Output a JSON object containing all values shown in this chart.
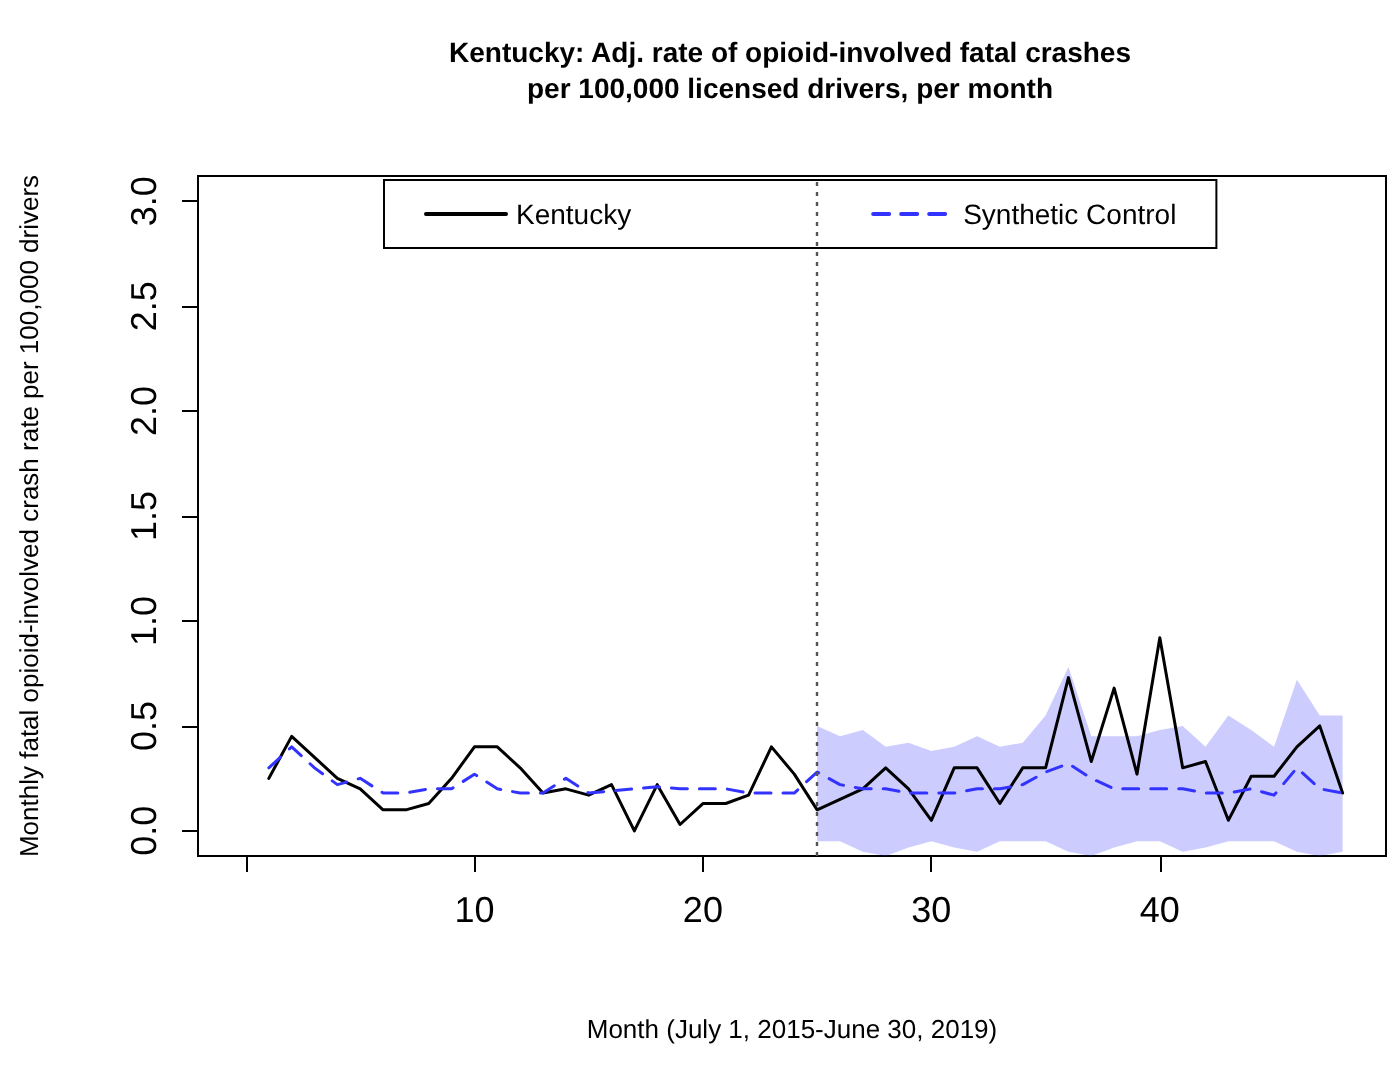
{
  "chart_data": {
    "type": "line",
    "title": "Kentucky: Adj. rate of opioid-involved fatal crashes\nper 100,000 licensed drivers, per month",
    "xlabel": "Month (July 1, 2015-June 30, 2019)",
    "ylabel": "Monthly fatal opioid-involved crash rate per 100,000 drivers",
    "x": [
      1,
      2,
      3,
      4,
      5,
      6,
      7,
      8,
      9,
      10,
      11,
      12,
      13,
      14,
      15,
      16,
      17,
      18,
      19,
      20,
      21,
      22,
      23,
      24,
      25,
      26,
      27,
      28,
      29,
      30,
      31,
      32,
      33,
      34,
      35,
      36,
      37,
      38,
      39,
      40,
      41,
      42,
      43,
      44,
      45,
      46,
      47,
      48
    ],
    "series": [
      {
        "name": "Kentucky",
        "color": "#000000",
        "line_style": "solid",
        "values": [
          0.25,
          0.45,
          0.35,
          0.25,
          0.2,
          0.1,
          0.1,
          0.13,
          0.25,
          0.4,
          0.4,
          0.3,
          0.18,
          0.2,
          0.17,
          0.22,
          0.0,
          0.22,
          0.03,
          0.13,
          0.13,
          0.17,
          0.4,
          0.27,
          0.1,
          0.15,
          0.2,
          0.3,
          0.2,
          0.05,
          0.3,
          0.3,
          0.13,
          0.3,
          0.3,
          0.73,
          0.33,
          0.68,
          0.27,
          0.92,
          0.3,
          0.33,
          0.05,
          0.26,
          0.26,
          0.4,
          0.5,
          0.18
        ]
      },
      {
        "name": "Synthetic Control",
        "color": "#3333ff",
        "line_style": "dashed",
        "values": [
          0.3,
          0.4,
          0.3,
          0.22,
          0.25,
          0.18,
          0.18,
          0.2,
          0.2,
          0.27,
          0.2,
          0.18,
          0.18,
          0.25,
          0.18,
          0.19,
          0.2,
          0.21,
          0.2,
          0.2,
          0.2,
          0.18,
          0.18,
          0.18,
          0.28,
          0.22,
          0.2,
          0.2,
          0.18,
          0.18,
          0.18,
          0.2,
          0.2,
          0.22,
          0.28,
          0.32,
          0.25,
          0.2,
          0.2,
          0.2,
          0.2,
          0.18,
          0.18,
          0.2,
          0.17,
          0.3,
          0.2,
          0.18
        ],
        "upper": [
          null,
          null,
          null,
          null,
          null,
          null,
          null,
          null,
          null,
          null,
          null,
          null,
          null,
          null,
          null,
          null,
          null,
          null,
          null,
          null,
          null,
          null,
          null,
          null,
          0.5,
          0.45,
          0.48,
          0.4,
          0.42,
          0.38,
          0.4,
          0.45,
          0.4,
          0.42,
          0.55,
          0.78,
          0.45,
          0.45,
          0.45,
          0.48,
          0.5,
          0.4,
          0.55,
          0.48,
          0.4,
          0.72,
          0.55,
          0.55
        ],
        "lower": [
          null,
          null,
          null,
          null,
          null,
          null,
          null,
          null,
          null,
          null,
          null,
          null,
          null,
          null,
          null,
          null,
          null,
          null,
          null,
          null,
          null,
          null,
          null,
          null,
          -0.05,
          -0.05,
          -0.1,
          -0.12,
          -0.08,
          -0.05,
          -0.08,
          -0.1,
          -0.05,
          -0.05,
          -0.05,
          -0.1,
          -0.12,
          -0.08,
          -0.05,
          -0.05,
          -0.1,
          -0.08,
          -0.05,
          -0.05,
          -0.05,
          -0.1,
          -0.12,
          -0.1
        ]
      }
    ],
    "xlim": [
      -2.1,
      49.9
    ],
    "xticks": [
      {
        "value": 0,
        "label": null
      },
      10,
      20,
      30,
      40
    ],
    "ylim": [
      -0.12,
      3.12
    ],
    "yticks": [
      {
        "value": 0,
        "label": "0.0"
      },
      0.5,
      {
        "value": 1,
        "label": "1.0"
      },
      1.5,
      {
        "value": 2,
        "label": "2.0"
      },
      2.5,
      {
        "value": 3,
        "label": "3.0"
      }
    ],
    "ref_lines": [
      {
        "axis": "x",
        "value": 25,
        "line_style": "dotted",
        "color": "#555555"
      }
    ],
    "legend": "top",
    "grid": false,
    "marker": "none"
  }
}
